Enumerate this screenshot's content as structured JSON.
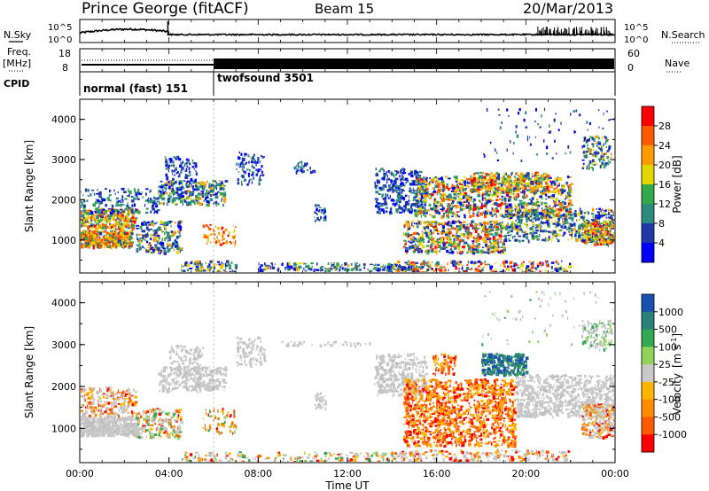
{
  "header": {
    "station": "Prince George (fitACF)",
    "beam": "Beam 15",
    "date": "20/Mar/2013"
  },
  "left_labels": {
    "nsky": "N.Sky",
    "freq_line1": "Freq.",
    "freq_line2": "[MHz]",
    "cpid": "CPID"
  },
  "right_labels": {
    "nsearch": "N.Search",
    "nave": "Nave"
  },
  "noise_panel": {
    "left_ticks": [
      "10^5",
      "10^0"
    ],
    "right_ticks": [
      "10^5",
      "10^0"
    ]
  },
  "freq_panel": {
    "left_ticks": [
      "18",
      "8"
    ],
    "right_ticks": [
      "60",
      "0"
    ]
  },
  "cpid_panel": {
    "programs": [
      {
        "label": "normal (fast) 151",
        "start_hour": 0,
        "end_hour": 6
      },
      {
        "label": "twofsound 3501",
        "start_hour": 6,
        "end_hour": 24
      }
    ]
  },
  "chart_data": [
    {
      "type": "heatmap",
      "title": "",
      "ylabel": "Slant Range [km]",
      "xlabel": "",
      "xlim": [
        0,
        24
      ],
      "ylim": [
        180,
        4500
      ],
      "yticks": [
        "1000",
        "2000",
        "3000",
        "4000"
      ],
      "colorbar": {
        "label": "Power [dB]",
        "ticks": [
          "28",
          "24",
          "20",
          "16",
          "12",
          "8",
          "4"
        ],
        "colors": [
          "#ff0000",
          "#ff5a00",
          "#ff9b00",
          "#e3d700",
          "#33a84a",
          "#2d8a7e",
          "#1f3aa8",
          "#0000ff"
        ]
      }
    },
    {
      "type": "heatmap",
      "title": "",
      "ylabel": "Slant Range [km]",
      "xlabel": "Time UT",
      "xlim": [
        0,
        24
      ],
      "ylim": [
        180,
        4500
      ],
      "yticks": [
        "1000",
        "2000",
        "3000",
        "4000"
      ],
      "xticks": [
        "00:00",
        "04:00",
        "08:00",
        "12:00",
        "16:00",
        "20:00",
        "00:00"
      ],
      "colorbar": {
        "label_main": "Velocity",
        "label_unit": "[m s",
        "label_exp": "-1",
        "label_close": "]",
        "ticks": [
          "1000",
          "500",
          "100",
          "25",
          "-25",
          "-100",
          "-500",
          "-1000"
        ],
        "colors": [
          "#1a4fb0",
          "#2d7f7a",
          "#34a853",
          "#8fd35a",
          "#c8c8c8",
          "#ffb400",
          "#ff8c00",
          "#ff5a00",
          "#ff0000"
        ]
      }
    }
  ]
}
